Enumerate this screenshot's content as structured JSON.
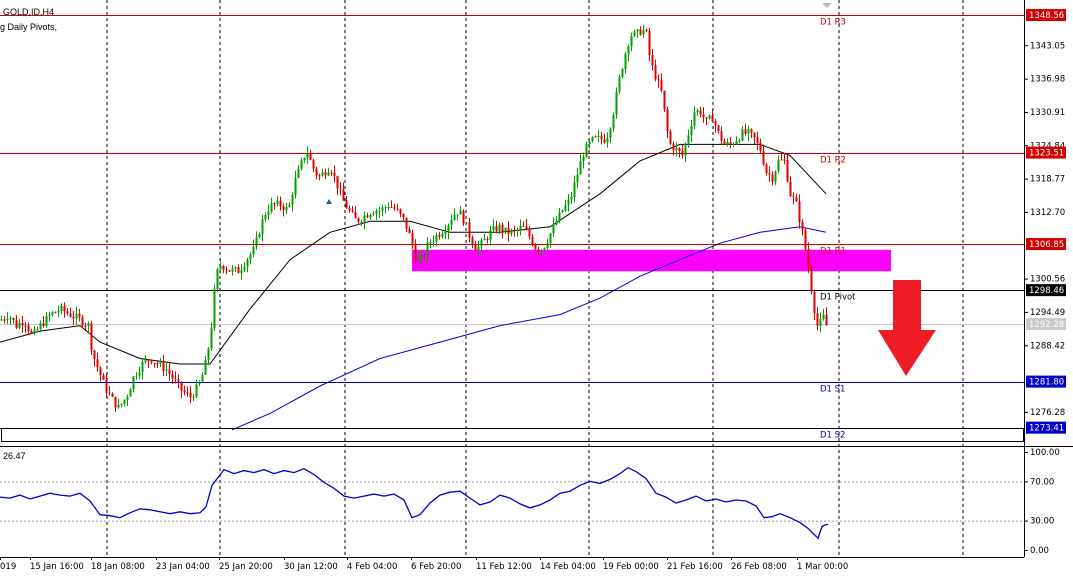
{
  "chart_header": {
    "symbol_label": "GOLD.ID,H4",
    "indicator_label": "g Daily Pivots,",
    "oscillator_value": "26.47"
  },
  "colors": {
    "bull": "#00a000",
    "bear": "#e00000",
    "resistance": "#d40000",
    "support": "#0000c8",
    "pivot": "#000000",
    "zone": "#ff00ff",
    "arrow": "#ee1c24",
    "ma_fast": "#000000",
    "ma_slow": "#0000e0",
    "oscillator": "#0000d0",
    "current_price": "#c8c8c8"
  },
  "price_axis": {
    "ticks": [
      "1343.05",
      "1336.98",
      "1330.91",
      "1324.84",
      "1318.77",
      "1312.70",
      "1300.56",
      "1294.49",
      "1288.42",
      "1276.28"
    ],
    "ylim": [
      1270.8,
      1351.3
    ]
  },
  "pivots": [
    {
      "name": "D1 R3",
      "value": 1348.56,
      "badge": "1348.56",
      "kind": "resistance"
    },
    {
      "name": "D1 R2",
      "value": 1323.51,
      "badge": "1323.51",
      "kind": "resistance"
    },
    {
      "name": "D1 R1",
      "value": 1306.85,
      "badge": "1306.85",
      "kind": "resistance"
    },
    {
      "name": "D1 Pivot",
      "value": 1298.46,
      "badge": "1298.46",
      "kind": "pivot"
    },
    {
      "name": "D1 S1",
      "value": 1281.8,
      "badge": "1281.80",
      "kind": "support"
    },
    {
      "name": "D1 S2",
      "value": 1273.41,
      "badge": "1273.41",
      "kind": "support"
    }
  ],
  "current_price": {
    "value": 1292.28,
    "badge": "1292.28"
  },
  "zone": {
    "low": 1301.9,
    "high": 1305.8
  },
  "oscillator_axis": {
    "ticks": [
      "100.00",
      "70.00",
      "30.00",
      "0.00"
    ],
    "ylim": [
      0,
      100
    ]
  },
  "time_axis": {
    "labels": [
      "019",
      "15 Jan 16:00",
      "18 Jan 08:00",
      "23 Jan 04:00",
      "25 Jan 20:00",
      "30 Jan 12:00",
      "4 Feb 04:00",
      "6 Feb 20:00",
      "11 Feb 12:00",
      "14 Feb 04:00",
      "19 Feb 00:00",
      "21 Feb 16:00",
      "26 Feb 08:00",
      "1 Mar 00:00"
    ]
  },
  "chart_data": {
    "type": "candlestick",
    "price_path": [
      [
        0,
        1293
      ],
      [
        8,
        1294
      ],
      [
        16,
        1292
      ],
      [
        24,
        1293
      ],
      [
        32,
        1290
      ],
      [
        40,
        1292
      ],
      [
        50,
        1294
      ],
      [
        60,
        1295
      ],
      [
        70,
        1294
      ],
      [
        80,
        1293
      ],
      [
        88,
        1292
      ],
      [
        92,
        1287
      ],
      [
        98,
        1284
      ],
      [
        104,
        1281
      ],
      [
        110,
        1279
      ],
      [
        118,
        1277
      ],
      [
        126,
        1279
      ],
      [
        134,
        1283
      ],
      [
        142,
        1285
      ],
      [
        150,
        1286
      ],
      [
        158,
        1285
      ],
      [
        166,
        1284
      ],
      [
        174,
        1282
      ],
      [
        182,
        1280
      ],
      [
        190,
        1279
      ],
      [
        198,
        1281
      ],
      [
        204,
        1284
      ],
      [
        210,
        1290
      ],
      [
        214,
        1298
      ],
      [
        218,
        1303
      ],
      [
        222,
        1303
      ],
      [
        230,
        1302
      ],
      [
        238,
        1302
      ],
      [
        246,
        1304
      ],
      [
        254,
        1306
      ],
      [
        260,
        1310
      ],
      [
        266,
        1313
      ],
      [
        272,
        1314
      ],
      [
        280,
        1314
      ],
      [
        288,
        1313
      ],
      [
        294,
        1318
      ],
      [
        300,
        1321
      ],
      [
        306,
        1324
      ],
      [
        312,
        1321
      ],
      [
        318,
        1319
      ],
      [
        324,
        1320
      ],
      [
        330,
        1321
      ],
      [
        336,
        1318
      ],
      [
        342,
        1315
      ],
      [
        348,
        1313
      ],
      [
        356,
        1311
      ],
      [
        364,
        1312
      ],
      [
        372,
        1313
      ],
      [
        380,
        1313
      ],
      [
        388,
        1314
      ],
      [
        396,
        1313
      ],
      [
        404,
        1311
      ],
      [
        410,
        1308
      ],
      [
        416,
        1304
      ],
      [
        422,
        1304
      ],
      [
        428,
        1307
      ],
      [
        434,
        1308
      ],
      [
        440,
        1309
      ],
      [
        446,
        1310
      ],
      [
        452,
        1312
      ],
      [
        458,
        1313
      ],
      [
        464,
        1311
      ],
      [
        470,
        1308
      ],
      [
        476,
        1306
      ],
      [
        482,
        1307
      ],
      [
        490,
        1309
      ],
      [
        498,
        1310
      ],
      [
        506,
        1309
      ],
      [
        514,
        1309
      ],
      [
        522,
        1310
      ],
      [
        530,
        1308
      ],
      [
        536,
        1306
      ],
      [
        542,
        1306
      ],
      [
        548,
        1308
      ],
      [
        556,
        1311
      ],
      [
        562,
        1313
      ],
      [
        570,
        1315
      ],
      [
        576,
        1319
      ],
      [
        582,
        1323
      ],
      [
        588,
        1325
      ],
      [
        594,
        1326
      ],
      [
        600,
        1326
      ],
      [
        606,
        1326
      ],
      [
        612,
        1330
      ],
      [
        618,
        1336
      ],
      [
        624,
        1341
      ],
      [
        630,
        1345
      ],
      [
        636,
        1345
      ],
      [
        642,
        1346
      ],
      [
        646,
        1345
      ],
      [
        650,
        1340
      ],
      [
        656,
        1337
      ],
      [
        662,
        1334
      ],
      [
        666,
        1328
      ],
      [
        670,
        1325
      ],
      [
        676,
        1324
      ],
      [
        682,
        1323
      ],
      [
        688,
        1327
      ],
      [
        694,
        1331
      ],
      [
        700,
        1331
      ],
      [
        706,
        1329
      ],
      [
        712,
        1330
      ],
      [
        718,
        1327
      ],
      [
        724,
        1325
      ],
      [
        730,
        1325
      ],
      [
        736,
        1326
      ],
      [
        742,
        1327
      ],
      [
        748,
        1327
      ],
      [
        754,
        1326
      ],
      [
        760,
        1324
      ],
      [
        766,
        1320
      ],
      [
        772,
        1319
      ],
      [
        778,
        1322
      ],
      [
        784,
        1322
      ],
      [
        790,
        1316
      ],
      [
        796,
        1314
      ],
      [
        802,
        1309
      ],
      [
        806,
        1305
      ],
      [
        810,
        1300
      ],
      [
        814,
        1295
      ],
      [
        818,
        1291
      ],
      [
        822,
        1294
      ],
      [
        826,
        1292
      ],
      [
        828,
        1292
      ]
    ],
    "ma_fast": [
      [
        0,
        1289
      ],
      [
        40,
        1291
      ],
      [
        80,
        1292
      ],
      [
        100,
        1289
      ],
      [
        140,
        1286
      ],
      [
        180,
        1285
      ],
      [
        210,
        1285
      ],
      [
        250,
        1295
      ],
      [
        290,
        1304
      ],
      [
        330,
        1309
      ],
      [
        370,
        1311
      ],
      [
        410,
        1311
      ],
      [
        450,
        1309
      ],
      [
        500,
        1309
      ],
      [
        550,
        1310
      ],
      [
        600,
        1316
      ],
      [
        640,
        1322
      ],
      [
        680,
        1325
      ],
      [
        720,
        1325
      ],
      [
        760,
        1325
      ],
      [
        790,
        1323
      ],
      [
        826,
        1316
      ]
    ],
    "ma_slow": [
      [
        232,
        1273
      ],
      [
        270,
        1276
      ],
      [
        320,
        1281
      ],
      [
        380,
        1286
      ],
      [
        440,
        1289
      ],
      [
        500,
        1292
      ],
      [
        560,
        1294
      ],
      [
        600,
        1297
      ],
      [
        640,
        1301
      ],
      [
        680,
        1304
      ],
      [
        720,
        1307
      ],
      [
        760,
        1309
      ],
      [
        800,
        1310
      ],
      [
        826,
        1309
      ]
    ],
    "oscillator": [
      [
        0,
        54
      ],
      [
        10,
        53
      ],
      [
        20,
        56
      ],
      [
        30,
        52
      ],
      [
        40,
        55
      ],
      [
        50,
        58
      ],
      [
        60,
        56
      ],
      [
        70,
        55
      ],
      [
        80,
        58
      ],
      [
        90,
        50
      ],
      [
        100,
        36
      ],
      [
        110,
        35
      ],
      [
        120,
        33
      ],
      [
        130,
        38
      ],
      [
        140,
        42
      ],
      [
        150,
        41
      ],
      [
        160,
        39
      ],
      [
        170,
        37
      ],
      [
        180,
        39
      ],
      [
        190,
        37
      ],
      [
        200,
        38
      ],
      [
        206,
        44
      ],
      [
        212,
        66
      ],
      [
        218,
        74
      ],
      [
        224,
        82
      ],
      [
        234,
        78
      ],
      [
        244,
        81
      ],
      [
        254,
        79
      ],
      [
        264,
        82
      ],
      [
        274,
        78
      ],
      [
        284,
        81
      ],
      [
        294,
        79
      ],
      [
        304,
        83
      ],
      [
        314,
        77
      ],
      [
        324,
        69
      ],
      [
        334,
        63
      ],
      [
        344,
        55
      ],
      [
        354,
        53
      ],
      [
        364,
        55
      ],
      [
        374,
        57
      ],
      [
        384,
        55
      ],
      [
        394,
        57
      ],
      [
        404,
        51
      ],
      [
        412,
        33
      ],
      [
        420,
        36
      ],
      [
        430,
        48
      ],
      [
        440,
        56
      ],
      [
        450,
        59
      ],
      [
        460,
        60
      ],
      [
        470,
        53
      ],
      [
        480,
        46
      ],
      [
        490,
        49
      ],
      [
        500,
        56
      ],
      [
        510,
        53
      ],
      [
        520,
        47
      ],
      [
        530,
        43
      ],
      [
        540,
        46
      ],
      [
        550,
        51
      ],
      [
        560,
        58
      ],
      [
        570,
        60
      ],
      [
        580,
        66
      ],
      [
        590,
        70
      ],
      [
        600,
        68
      ],
      [
        610,
        72
      ],
      [
        620,
        78
      ],
      [
        628,
        84
      ],
      [
        636,
        80
      ],
      [
        646,
        73
      ],
      [
        656,
        58
      ],
      [
        666,
        54
      ],
      [
        676,
        48
      ],
      [
        686,
        51
      ],
      [
        696,
        55
      ],
      [
        706,
        50
      ],
      [
        716,
        52
      ],
      [
        726,
        49
      ],
      [
        736,
        51
      ],
      [
        746,
        50
      ],
      [
        756,
        45
      ],
      [
        764,
        33
      ],
      [
        772,
        34
      ],
      [
        780,
        37
      ],
      [
        790,
        33
      ],
      [
        800,
        28
      ],
      [
        808,
        22
      ],
      [
        814,
        16
      ],
      [
        818,
        12
      ],
      [
        822,
        24
      ],
      [
        826,
        26
      ],
      [
        828,
        26
      ]
    ]
  }
}
